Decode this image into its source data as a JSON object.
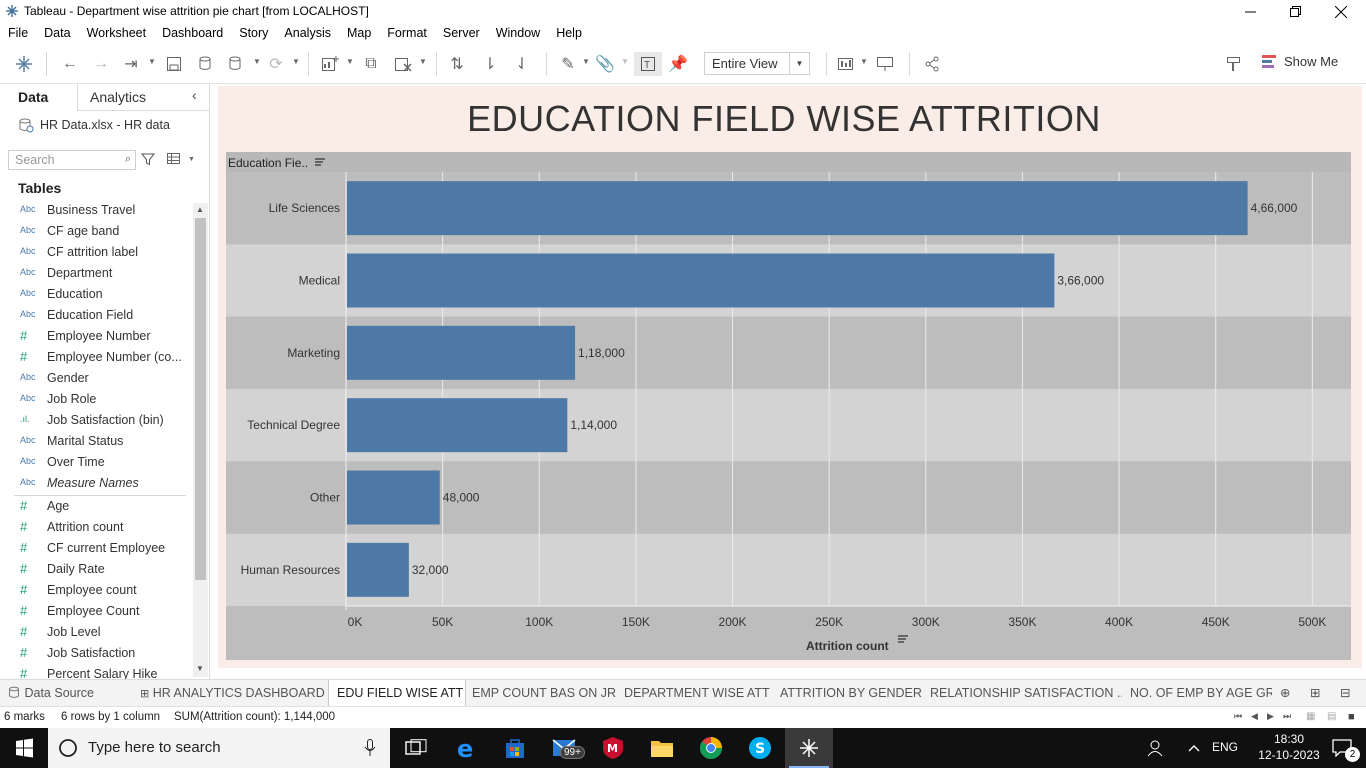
{
  "window": {
    "title": "Tableau - Department wise attrition  pie chart [from LOCALHOST]"
  },
  "menu": [
    "File",
    "Data",
    "Worksheet",
    "Dashboard",
    "Story",
    "Analysis",
    "Map",
    "Format",
    "Server",
    "Window",
    "Help"
  ],
  "toolbar": {
    "fit_value": "Entire View",
    "show_me_label": "Show Me"
  },
  "data_pane": {
    "tabs": [
      "Data",
      "Analytics"
    ],
    "datasource": "HR Data.xlsx - HR data",
    "search_placeholder": "Search",
    "tables_heading": "Tables",
    "dimensions": [
      {
        "type": "Abc",
        "name": "Business Travel"
      },
      {
        "type": "Abc",
        "name": "CF age band"
      },
      {
        "type": "Abc",
        "name": "CF attrition label"
      },
      {
        "type": "Abc",
        "name": "Department"
      },
      {
        "type": "Abc",
        "name": "Education"
      },
      {
        "type": "Abc",
        "name": "Education Field"
      },
      {
        "type": "#",
        "name": "Employee Number"
      },
      {
        "type": "#",
        "name": "Employee Number (co..."
      },
      {
        "type": "Abc",
        "name": "Gender"
      },
      {
        "type": "Abc",
        "name": "Job Role"
      },
      {
        "type": "bin",
        "name": "Job Satisfaction (bin)"
      },
      {
        "type": "Abc",
        "name": "Marital Status"
      },
      {
        "type": "Abc",
        "name": "Over Time"
      },
      {
        "type": "Abc",
        "name": "Measure Names"
      }
    ],
    "measures": [
      {
        "type": "#",
        "name": "Age"
      },
      {
        "type": "#",
        "name": "Attrition count"
      },
      {
        "type": "#",
        "name": "CF current Employee"
      },
      {
        "type": "#",
        "name": "Daily Rate"
      },
      {
        "type": "#",
        "name": "Employee count"
      },
      {
        "type": "#",
        "name": "Employee Count"
      },
      {
        "type": "#",
        "name": "Job Level"
      },
      {
        "type": "#",
        "name": "Job Satisfaction"
      },
      {
        "type": "#",
        "name": "Percent Salary Hike"
      }
    ]
  },
  "chart_data": {
    "type": "bar",
    "orientation": "horizontal",
    "title": "EDUCATION FIELD WISE ATTRITION",
    "row_header": "Education Fie..",
    "categories": [
      "Life Sciences",
      "Medical",
      "Marketing",
      "Technical Degree",
      "Other",
      "Human Resources"
    ],
    "values": [
      466000,
      366000,
      118000,
      114000,
      48000,
      32000
    ],
    "labels": [
      "4,66,000",
      "3,66,000",
      "1,18,000",
      "1,14,000",
      "48,000",
      "32,000"
    ],
    "xlabel": "Attrition count",
    "xticks": [
      "0K",
      "50K",
      "100K",
      "150K",
      "200K",
      "250K",
      "300K",
      "350K",
      "400K",
      "450K",
      "500K"
    ],
    "xlim": [
      0,
      520000
    ],
    "bar_color": "#4e79a7",
    "band_colors": [
      "#bdbdbd",
      "#d3d3d3"
    ],
    "grid": true
  },
  "sheet_tabs": {
    "data_source": "Data Source",
    "tabs": [
      "HR ANALYTICS DASHBOARD",
      "EDU FIELD WISE ATT",
      "EMP COUNT BAS ON JR",
      "DEPARTMENT WISE ATT",
      "ATTRITION BY GENDER",
      "RELATIONSHIP SATISFACTION ...",
      "NO. OF EMP BY AGE GRF"
    ],
    "active_index": 1
  },
  "status": {
    "marks": "6 marks",
    "rows": "6 rows by 1 column",
    "sum": "SUM(Attrition count): 1,144,000"
  },
  "taskbar": {
    "search_placeholder": "Type here to search",
    "mail_badge": "99+",
    "lang": "ENG",
    "time": "18:30",
    "date": "12-10-2023",
    "notif_count": "2"
  }
}
